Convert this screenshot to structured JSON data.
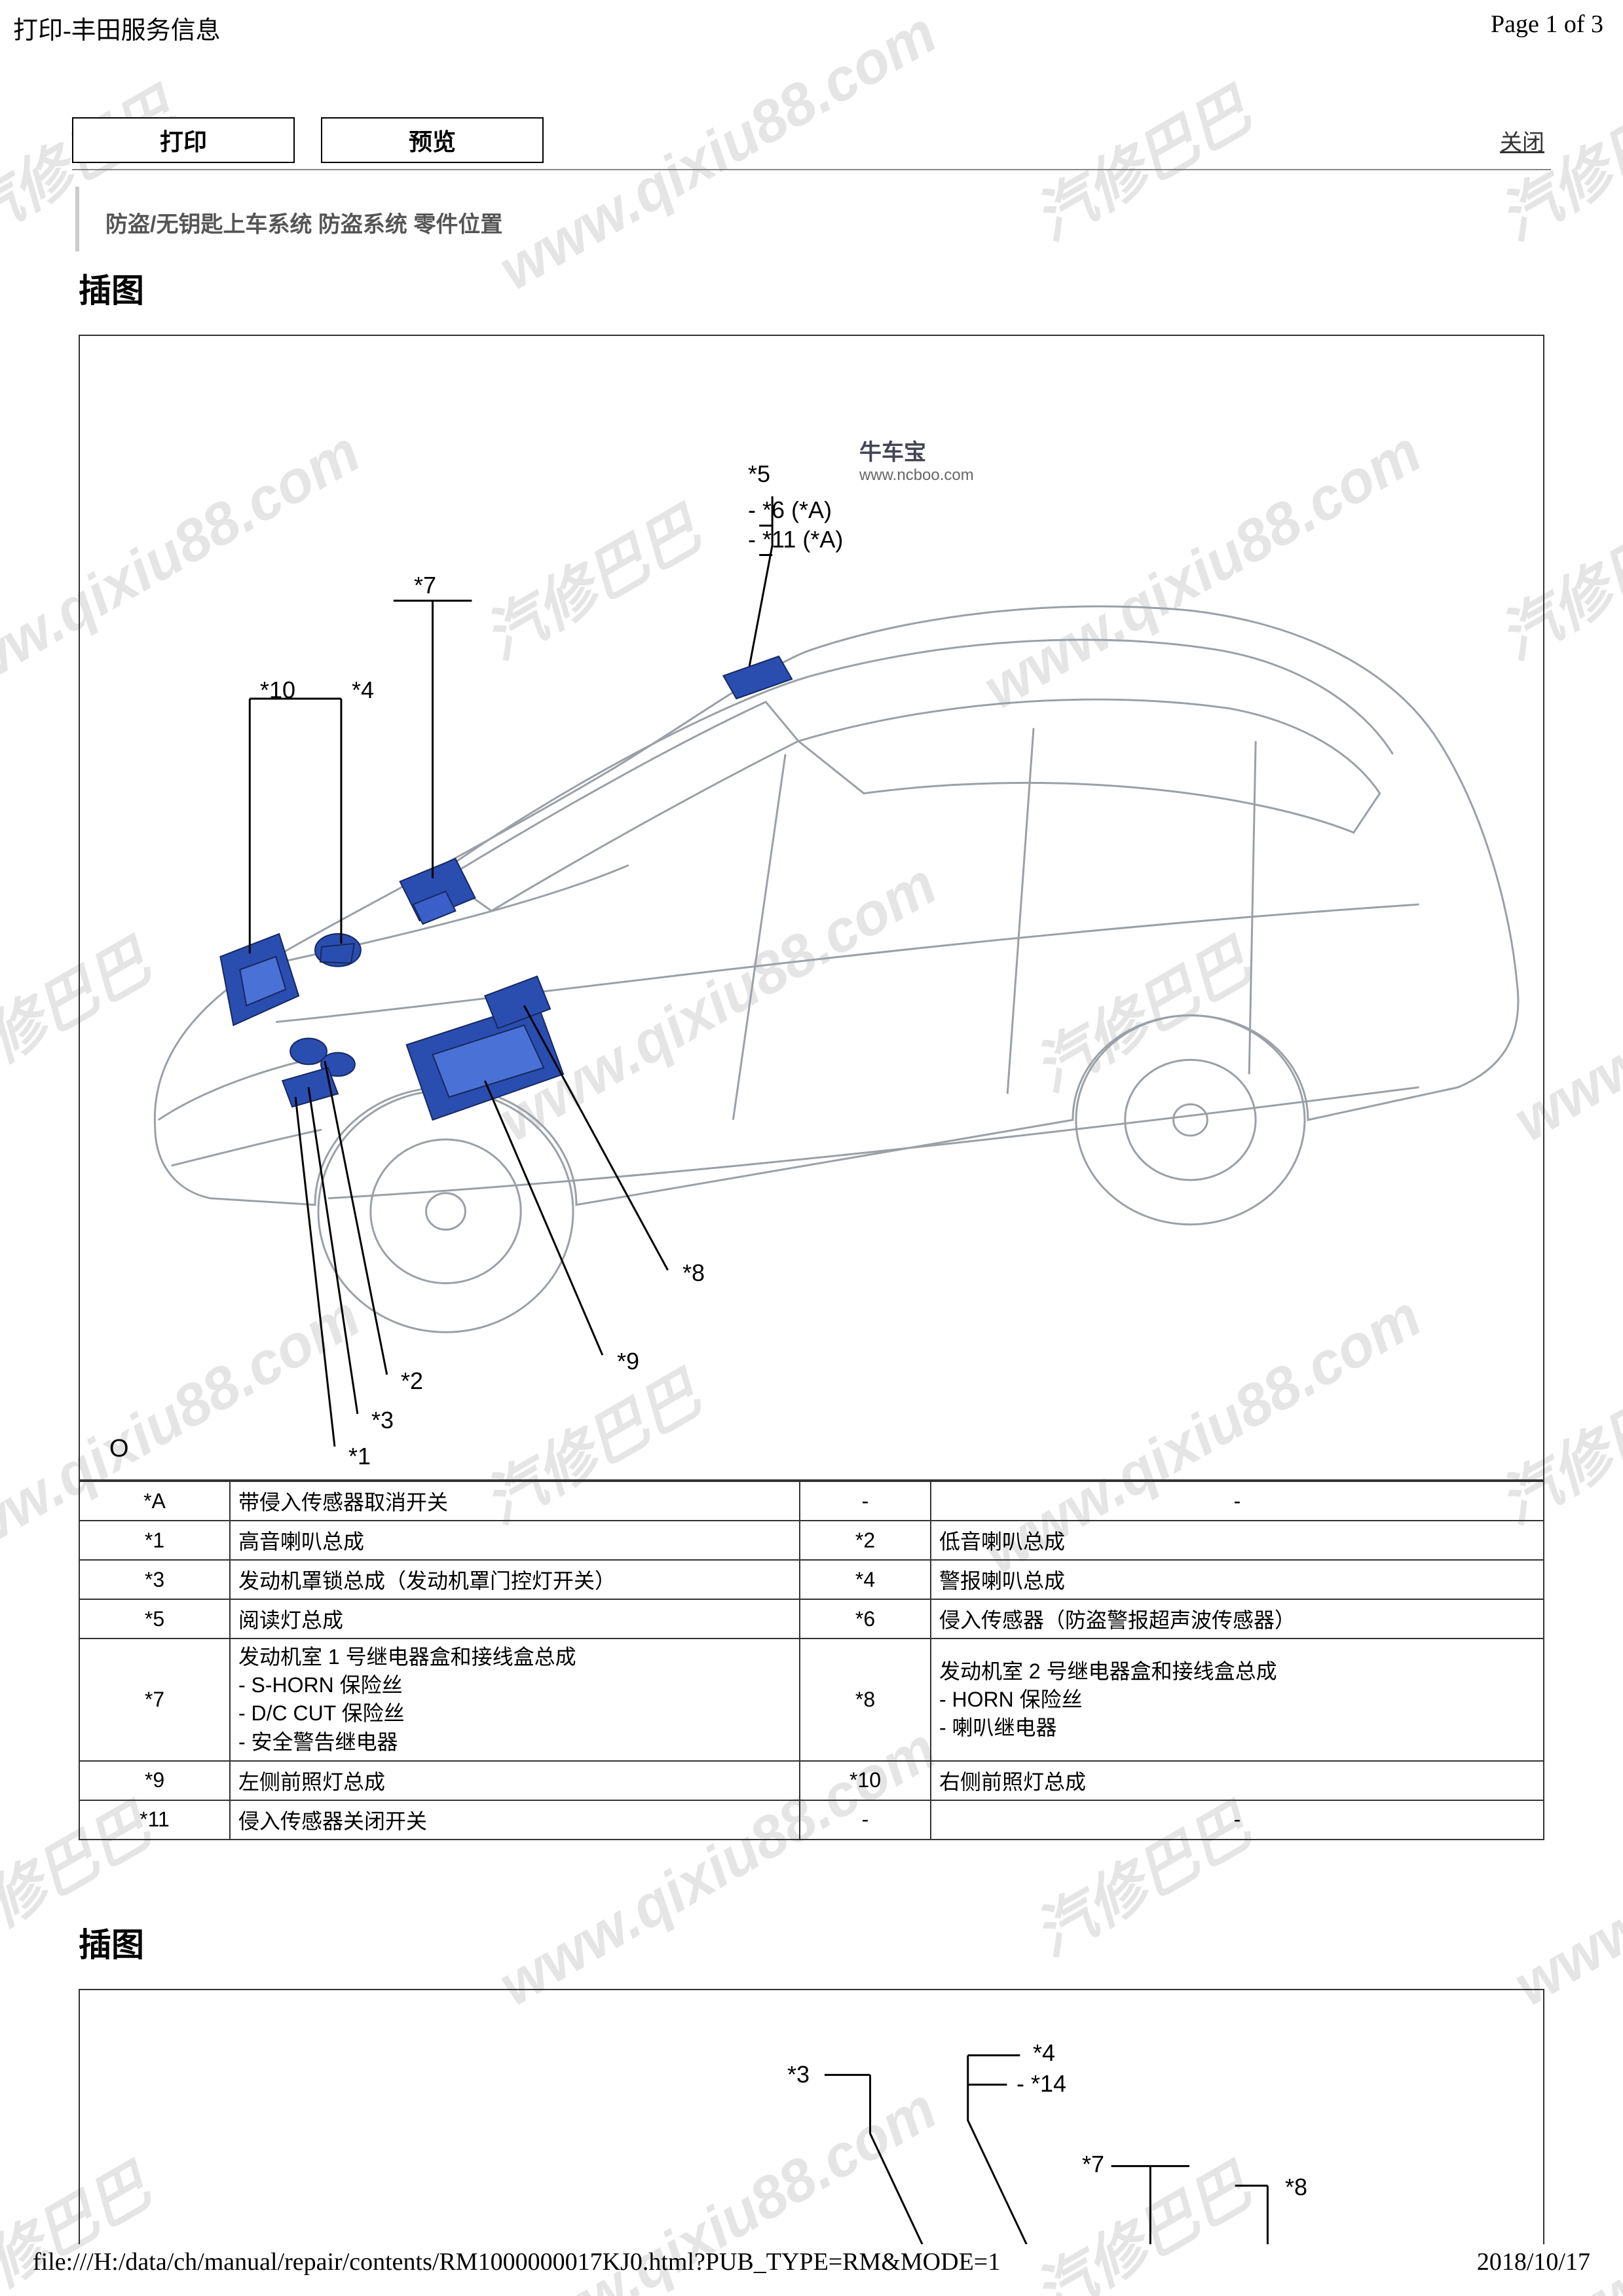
{
  "header": {
    "title_left": "打印-丰田服务信息",
    "page_info": "Page 1 of 3"
  },
  "toolbar": {
    "print_label": "打印",
    "preview_label": "预览",
    "close_label": "关闭"
  },
  "breadcrumb": "防盗/无钥匙上车系统  防盗系统  零件位置",
  "section_title": "插图",
  "watermark": {
    "text_a": "汽修巴巴",
    "text_b": "www.qixiu88.com",
    "color": "#b4b4b4"
  },
  "brand": {
    "name": "牛车宝",
    "url": "www.ncboo.com"
  },
  "diagram1": {
    "callouts": {
      "c5": "*5",
      "c6": "- *6  (*A)",
      "c11": "- *11 (*A)",
      "c7": "*7",
      "c10": "*10",
      "c4": "*4",
      "c8": "*8",
      "c9": "*9",
      "c2": "*2",
      "c3": "*3",
      "c1": "*1",
      "origin": "O"
    },
    "car_stroke": "#9aa0a6",
    "part_fill": "#2a4db0",
    "part_stroke": "#16285f",
    "leader_color": "#000000"
  },
  "diagram2": {
    "callouts": {
      "c3": "*3",
      "c4": "*4",
      "c14": "- *14",
      "c7": "*7",
      "c8": "*8"
    }
  },
  "table": {
    "rows": [
      {
        "refA": "*A",
        "descA": "带侵入传感器取消开关",
        "refB": "-",
        "descB": "-",
        "dashB": true
      },
      {
        "refA": "*1",
        "descA": "高音喇叭总成",
        "refB": "*2",
        "descB": "低音喇叭总成"
      },
      {
        "refA": "*3",
        "descA": "发动机罩锁总成（发动机罩门控灯开关）",
        "refB": "*4",
        "descB": "警报喇叭总成"
      },
      {
        "refA": "*5",
        "descA": "阅读灯总成",
        "refB": "*6",
        "descB": "侵入传感器（防盗警报超声波传感器）"
      },
      {
        "refA": "*7",
        "descA": "发动机室 1 号继电器盒和接线盒总成\n- S-HORN 保险丝\n- D/C CUT 保险丝\n- 安全警告继电器",
        "refB": "*8",
        "descB": "发动机室 2 号继电器盒和接线盒总成\n- HORN 保险丝\n- 喇叭继电器",
        "multi": true
      },
      {
        "refA": "*9",
        "descA": "左侧前照灯总成",
        "refB": "*10",
        "descB": "右侧前照灯总成"
      },
      {
        "refA": "*11",
        "descA": "侵入传感器关闭开关",
        "refB": "-",
        "descB": "-",
        "dashB": true
      }
    ]
  },
  "footer": {
    "path": "file:///H:/data/ch/manual/repair/contents/RM1000000017KJ0.html?PUB_TYPE=RM&MODE=1",
    "date": "2018/10/17"
  }
}
